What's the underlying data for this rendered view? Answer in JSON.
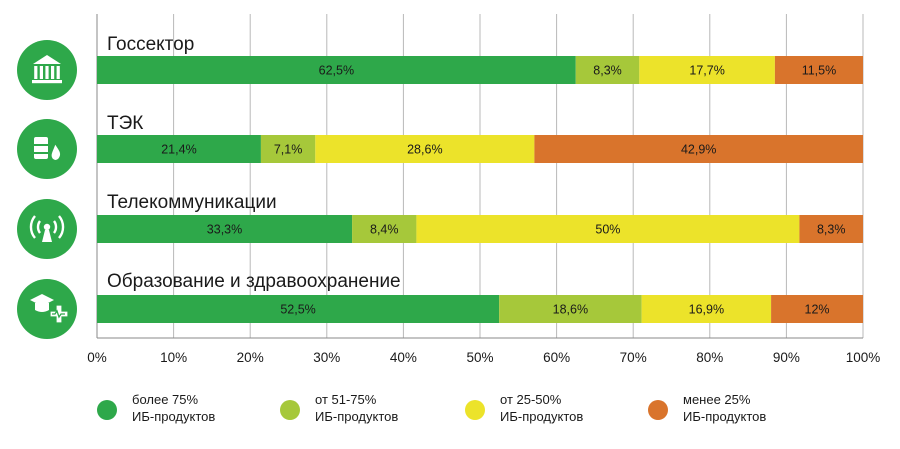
{
  "chart_data": {
    "type": "bar",
    "orientation": "horizontal",
    "stacked": true,
    "categories": [
      "Госсектор",
      "ТЭК",
      "Телекоммуникации",
      "Образование и здравоохранение"
    ],
    "category_icons": [
      "bank-icon",
      "oil-drop-icon",
      "radio-tower-icon",
      "graduation-medical-icon"
    ],
    "series": [
      {
        "name": "более 75% ИБ-продуктов",
        "legend_lines": [
          "более 75%",
          "ИБ-продуктов"
        ],
        "color": "#2ea84a",
        "values": [
          62.5,
          21.4,
          33.3,
          52.5
        ],
        "labels": [
          "62,5%",
          "21,4%",
          "33,3%",
          "52,5%"
        ]
      },
      {
        "name": "от 51-75% ИБ-продуктов",
        "legend_lines": [
          "от 51-75%",
          "ИБ-продуктов"
        ],
        "color": "#a6c83a",
        "values": [
          8.3,
          7.1,
          8.4,
          18.6
        ],
        "labels": [
          "8,3%",
          "7,1%",
          "8,4%",
          "18,6%"
        ]
      },
      {
        "name": "от 25-50% ИБ-продуктов",
        "legend_lines": [
          "от 25-50%",
          "ИБ-продуктов"
        ],
        "color": "#ece32a",
        "values": [
          17.7,
          28.6,
          50.0,
          16.9
        ],
        "labels": [
          "17,7%",
          "28,6%",
          "50%",
          "16,9%"
        ]
      },
      {
        "name": "менее 25% ИБ-продуктов",
        "legend_lines": [
          "менее 25%",
          "ИБ-продуктов"
        ],
        "color": "#d9742c",
        "values": [
          11.5,
          42.9,
          8.3,
          12.0
        ],
        "labels": [
          "11,5%",
          "42,9%",
          "8,3%",
          "12%"
        ]
      }
    ],
    "xlim": [
      0,
      100
    ],
    "xticks": [
      "0%",
      "10%",
      "20%",
      "30%",
      "40%",
      "50%",
      "60%",
      "70%",
      "80%",
      "90%",
      "100%"
    ],
    "grid": true,
    "legend_position": "bottom",
    "icon_color": "#2ea84a"
  }
}
